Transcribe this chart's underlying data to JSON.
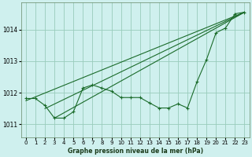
{
  "title": "Graphe pression niveau de la mer (hPa)",
  "bg_color": "#cff0ee",
  "grid_color": "#99ccbb",
  "line_color": "#1a6b2a",
  "xlim": [
    -0.5,
    23.5
  ],
  "ylim": [
    1010.6,
    1014.85
  ],
  "yticks": [
    1011,
    1012,
    1013,
    1014
  ],
  "xticks": [
    0,
    1,
    2,
    3,
    4,
    5,
    6,
    7,
    8,
    9,
    10,
    11,
    12,
    13,
    14,
    15,
    16,
    17,
    18,
    19,
    20,
    21,
    22,
    23
  ],
  "series_smooth": [
    {
      "x": [
        0,
        23
      ],
      "y": [
        1011.75,
        1014.55
      ]
    },
    {
      "x": [
        2,
        23
      ],
      "y": [
        1011.5,
        1014.55
      ]
    },
    {
      "x": [
        3,
        23
      ],
      "y": [
        1011.2,
        1014.55
      ]
    }
  ],
  "series_jagged": {
    "x": [
      0,
      1,
      2,
      3,
      4,
      5,
      6,
      7,
      8,
      9,
      10,
      11,
      12,
      13,
      14,
      15,
      16,
      17,
      18,
      19,
      20,
      21,
      22,
      23
    ],
    "y": [
      1011.82,
      1011.82,
      1011.6,
      1011.2,
      1011.2,
      1011.4,
      1012.15,
      1012.25,
      1012.15,
      1012.05,
      1011.85,
      1011.85,
      1011.85,
      1011.68,
      1011.52,
      1011.52,
      1011.65,
      1011.52,
      1012.35,
      1013.05,
      1013.9,
      1014.05,
      1014.5,
      1014.55
    ]
  }
}
